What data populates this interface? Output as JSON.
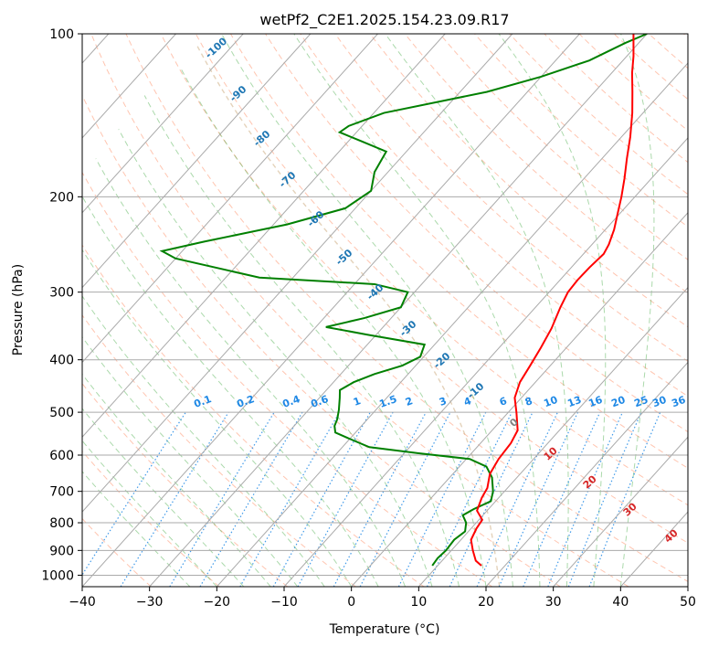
{
  "chart_data": {
    "type": "skewt",
    "title": "wetPf2_C2E1.2025.154.23.09.R17",
    "xlabel": "Temperature (°C)",
    "ylabel": "Pressure (hPa)",
    "xlim": [
      -40,
      50
    ],
    "ylim": [
      1050,
      100
    ],
    "y_scale": "log",
    "grid": true,
    "x_ticks": [
      "−40",
      "−30",
      "−20",
      "−10",
      "0",
      "10",
      "20",
      "30",
      "40",
      "50"
    ],
    "y_ticks": [
      "100",
      "200",
      "300",
      "400",
      "500",
      "600",
      "700",
      "800",
      "900",
      "1000"
    ],
    "temperature_color": "#ff0000",
    "dewpoint_color": "#008000",
    "temperature_profile": [
      {
        "p": 960,
        "t": 16.5
      },
      {
        "p": 940,
        "t": 15.0
      },
      {
        "p": 900,
        "t": 13.2
      },
      {
        "p": 860,
        "t": 11.5
      },
      {
        "p": 820,
        "t": 10.8
      },
      {
        "p": 790,
        "t": 10.5
      },
      {
        "p": 760,
        "t": 8.5
      },
      {
        "p": 720,
        "t": 7.5
      },
      {
        "p": 690,
        "t": 7.0
      },
      {
        "p": 650,
        "t": 5.5
      },
      {
        "p": 610,
        "t": 4.8
      },
      {
        "p": 570,
        "t": 4.5
      },
      {
        "p": 540,
        "t": 3.8
      },
      {
        "p": 500,
        "t": 1.2
      },
      {
        "p": 470,
        "t": -1.0
      },
      {
        "p": 440,
        "t": -2.3
      },
      {
        "p": 410,
        "t": -3.0
      },
      {
        "p": 380,
        "t": -3.8
      },
      {
        "p": 350,
        "t": -4.8
      },
      {
        "p": 320,
        "t": -6.3
      },
      {
        "p": 300,
        "t": -7.2
      },
      {
        "p": 285,
        "t": -7.4
      },
      {
        "p": 270,
        "t": -7.3
      },
      {
        "p": 255,
        "t": -7.0
      },
      {
        "p": 245,
        "t": -7.5
      },
      {
        "p": 230,
        "t": -8.7
      },
      {
        "p": 215,
        "t": -10.3
      },
      {
        "p": 200,
        "t": -12.0
      },
      {
        "p": 185,
        "t": -14.0
      },
      {
        "p": 170,
        "t": -16.3
      },
      {
        "p": 155,
        "t": -18.7
      },
      {
        "p": 140,
        "t": -21.6
      },
      {
        "p": 128,
        "t": -24.4
      },
      {
        "p": 118,
        "t": -27.0
      },
      {
        "p": 110,
        "t": -29.0
      },
      {
        "p": 100,
        "t": -32.0
      }
    ],
    "dewpoint_profile": [
      {
        "p": 960,
        "t": 9.2
      },
      {
        "p": 930,
        "t": 9.0
      },
      {
        "p": 900,
        "t": 9.2
      },
      {
        "p": 860,
        "t": 9.0
      },
      {
        "p": 830,
        "t": 9.5
      },
      {
        "p": 800,
        "t": 8.5
      },
      {
        "p": 775,
        "t": 7.0
      },
      {
        "p": 755,
        "t": 7.8
      },
      {
        "p": 730,
        "t": 9.3
      },
      {
        "p": 700,
        "t": 8.3
      },
      {
        "p": 660,
        "t": 6.3
      },
      {
        "p": 630,
        "t": 4.0
      },
      {
        "p": 610,
        "t": 0.5
      },
      {
        "p": 595,
        "t": -8.0
      },
      {
        "p": 580,
        "t": -16.0
      },
      {
        "p": 560,
        "t": -20.0
      },
      {
        "p": 545,
        "t": -23.0
      },
      {
        "p": 530,
        "t": -24.0
      },
      {
        "p": 515,
        "t": -24.5
      },
      {
        "p": 495,
        "t": -25.5
      },
      {
        "p": 470,
        "t": -27.0
      },
      {
        "p": 455,
        "t": -28.0
      },
      {
        "p": 440,
        "t": -27.0
      },
      {
        "p": 425,
        "t": -25.0
      },
      {
        "p": 410,
        "t": -22.0
      },
      {
        "p": 395,
        "t": -20.5
      },
      {
        "p": 375,
        "t": -21.5
      },
      {
        "p": 360,
        "t": -31.0
      },
      {
        "p": 348,
        "t": -38.5
      },
      {
        "p": 335,
        "t": -34.0
      },
      {
        "p": 320,
        "t": -30.0
      },
      {
        "p": 300,
        "t": -31.0
      },
      {
        "p": 290,
        "t": -37.0
      },
      {
        "p": 282,
        "t": -55.0
      },
      {
        "p": 260,
        "t": -70.0
      },
      {
        "p": 252,
        "t": -73.0
      },
      {
        "p": 242,
        "t": -68.0
      },
      {
        "p": 235,
        "t": -64.0
      },
      {
        "p": 225,
        "t": -58.0
      },
      {
        "p": 210,
        "t": -51.5
      },
      {
        "p": 195,
        "t": -50.0
      },
      {
        "p": 180,
        "t": -52.0
      },
      {
        "p": 165,
        "t": -53.0
      },
      {
        "p": 158,
        "t": -58.0
      },
      {
        "p": 152,
        "t": -62.5
      },
      {
        "p": 148,
        "t": -62.0
      },
      {
        "p": 140,
        "t": -58.5
      },
      {
        "p": 128,
        "t": -46.0
      },
      {
        "p": 120,
        "t": -40.0
      },
      {
        "p": 112,
        "t": -35.0
      },
      {
        "p": 104,
        "t": -32.0
      },
      {
        "p": 100,
        "t": -30.0
      }
    ],
    "isotherm_labels": [
      "-100",
      "-90",
      "-80",
      "-70",
      "-60",
      "-50",
      "-40",
      "-30",
      "-20",
      "-10",
      "0",
      "10",
      "20",
      "30",
      "40"
    ],
    "mixing_ratio_labels": [
      "0.1",
      "0.2",
      "0.4",
      "0.6",
      "1",
      "1.5",
      "2",
      "3",
      "4",
      "6",
      "8",
      "10",
      "13",
      "16",
      "20",
      "25",
      "30",
      "36"
    ],
    "line_colors": {
      "isotherms": "#aaaaaa",
      "dry_adiabats": "#ff7f50",
      "moist_adiabats": "#2ca02c",
      "mixing_ratio": "#1e88e5",
      "isotherm_label_cold": "#1f77b4",
      "isotherm_label_warm": "#d62728",
      "isotherm_label_zero": "#808080",
      "special_curve": "#d2b48c"
    }
  }
}
